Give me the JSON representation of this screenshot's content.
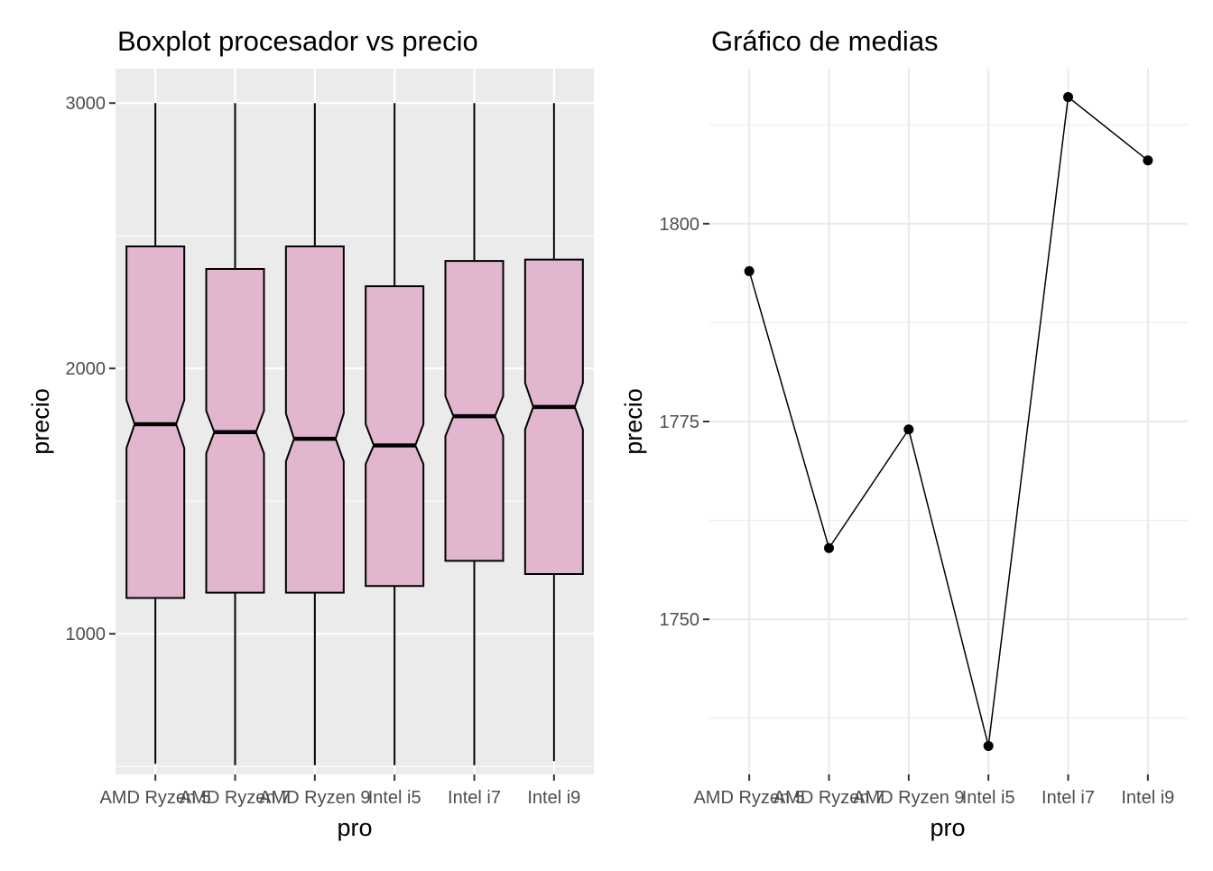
{
  "chart_data": [
    {
      "type": "box",
      "title": "Boxplot procesador vs precio",
      "xlabel": "pro",
      "ylabel": "precio",
      "categories": [
        "AMD Ryzen 5",
        "AMD Ryzen 7",
        "AMD Ryzen 9",
        "Intel i5",
        "Intel i7",
        "Intel i9"
      ],
      "ylim": [
        470,
        3130
      ],
      "y_ticks": [
        1000,
        2000,
        3000
      ],
      "y_tick_labels": [
        "1000",
        "2000",
        "3000"
      ],
      "notched": true,
      "grid": true,
      "panel_background": "#ebebeb",
      "box_fill": "#e2b6cf",
      "boxes": [
        {
          "min": 510,
          "q1": 1135,
          "median": 1790,
          "q3": 2460,
          "max": 3000,
          "notch_low": 1700,
          "notch_high": 1880
        },
        {
          "min": 505,
          "q1": 1155,
          "median": 1760,
          "q3": 2375,
          "max": 3000,
          "notch_low": 1680,
          "notch_high": 1840
        },
        {
          "min": 505,
          "q1": 1155,
          "median": 1735,
          "q3": 2460,
          "max": 3000,
          "notch_low": 1650,
          "notch_high": 1830
        },
        {
          "min": 505,
          "q1": 1180,
          "median": 1710,
          "q3": 2310,
          "max": 3000,
          "notch_low": 1640,
          "notch_high": 1790
        },
        {
          "min": 505,
          "q1": 1275,
          "median": 1820,
          "q3": 2405,
          "max": 3000,
          "notch_low": 1745,
          "notch_high": 1895
        },
        {
          "min": 520,
          "q1": 1225,
          "median": 1855,
          "q3": 2410,
          "max": 3000,
          "notch_low": 1770,
          "notch_high": 1945
        }
      ]
    },
    {
      "type": "line",
      "title": "Gráfico de medias",
      "xlabel": "pro",
      "ylabel": "precio",
      "categories": [
        "AMD Ryzen 5",
        "AMD Ryzen 7",
        "AMD Ryzen 9",
        "Intel i5",
        "Intel i7",
        "Intel i9"
      ],
      "values": [
        1794,
        1759,
        1774,
        1734,
        1816,
        1808
      ],
      "ylim": [
        1730.4,
        1819.6
      ],
      "y_ticks": [
        1750,
        1775,
        1800
      ],
      "y_tick_labels": [
        "1750",
        "1775",
        "1800"
      ],
      "grid": true,
      "panel_background": "#ffffff"
    }
  ]
}
